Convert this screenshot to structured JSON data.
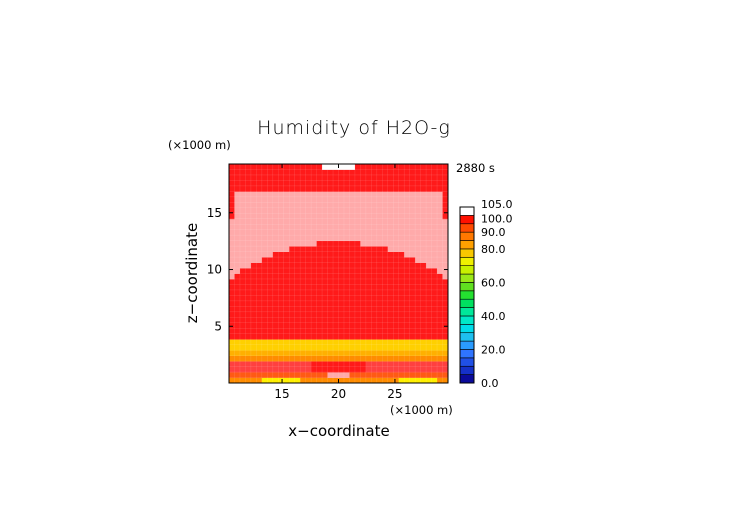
{
  "chart_data": {
    "type": "heatmap",
    "title": "Humidity of H2O-g",
    "time_label": "2880 s",
    "xlabel": "x−coordinate",
    "ylabel": "z−coordinate",
    "x_unit": "(×1000 m)",
    "z_unit": "(×1000 m)",
    "xlim": [
      10.3,
      29.7
    ],
    "zlim": [
      0,
      19.3
    ],
    "x_ticks": [
      15,
      20,
      25
    ],
    "z_ticks": [
      5,
      10,
      15
    ],
    "x_tick_labels": [
      "15",
      "20",
      "25"
    ],
    "z_tick_labels": [
      "5",
      "10",
      "15"
    ],
    "grid_cells": {
      "nx": 40,
      "nz": 40
    },
    "legend": {
      "placement": "right",
      "tick_labels": [
        "0.0",
        "20.0",
        "40.0",
        "60.0",
        "80.0",
        "90.0",
        "100.0",
        "105.0"
      ],
      "levels": [
        0,
        5,
        10,
        15,
        20,
        25,
        30,
        35,
        40,
        45,
        50,
        55,
        60,
        65,
        70,
        75,
        80,
        85,
        90,
        95,
        100,
        105
      ],
      "colors": [
        "#0a0a9a",
        "#1530c8",
        "#2050e6",
        "#2f74ff",
        "#2a9bff",
        "#1ec0f0",
        "#00dcea",
        "#00e8c8",
        "#00e89a",
        "#00e060",
        "#24e030",
        "#60e020",
        "#9ae818",
        "#c8f000",
        "#f0f000",
        "#f8c800",
        "#ffa000",
        "#ff7800",
        "#ff4a00",
        "#ff1000",
        "#ffffff"
      ]
    },
    "colors": {
      "band_100": "#ff1a1a",
      "band_95_100": "#ff4040",
      "band_supersat": "#ffaaaa",
      "band_90": "#ff5a14",
      "band_85": "#ff8c00",
      "band_80": "#ffb000",
      "band_75": "#ffd000",
      "band_70": "#fff000",
      "band_top_white": "#ffffff"
    },
    "field_description_levels": {
      "top_layer_z": [
        17.5,
        19.3
      ],
      "supersaturated_layer_z": [
        12.3,
        17.0
      ],
      "upper_saturated_z": [
        3.8,
        12.3
      ],
      "lower_moist_z": [
        0,
        3.8
      ]
    }
  }
}
